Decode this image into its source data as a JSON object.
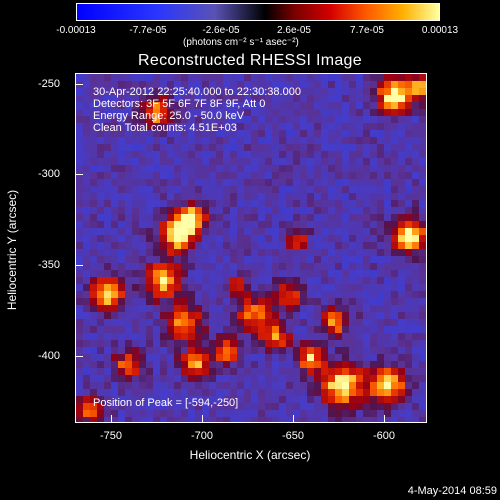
{
  "colorbar": {
    "ticks": [
      "-0.00013",
      "-7.7e-05",
      "-2.6e-05",
      "2.6e-05",
      "7.7e-05",
      "0.00013"
    ],
    "units": "(photons cm⁻² s⁻¹ asec⁻²)"
  },
  "title": "Reconstructed RHESSI Image",
  "info": {
    "time": "30-Apr-2012 22:25:40.000 to 22:30:38.000",
    "detectors": "Detectors: 3F 5F 6F 7F 8F 9F, Att 0",
    "energy": "Energy Range: 25.0 - 50.0 keV",
    "clean": "Clean     Total counts: 4.51E+03",
    "peak": "Position of Peak = [-594,-250]"
  },
  "axes": {
    "xlabel": "Heliocentric X (arcsec)",
    "ylabel": "Heliocentric Y (arcsec)",
    "xticks": [
      "-750",
      "-700",
      "-650",
      "-600"
    ],
    "yticks": [
      "-250",
      "-300",
      "-350",
      "-400"
    ]
  },
  "timestamp": "4-May-2014 08:59"
}
